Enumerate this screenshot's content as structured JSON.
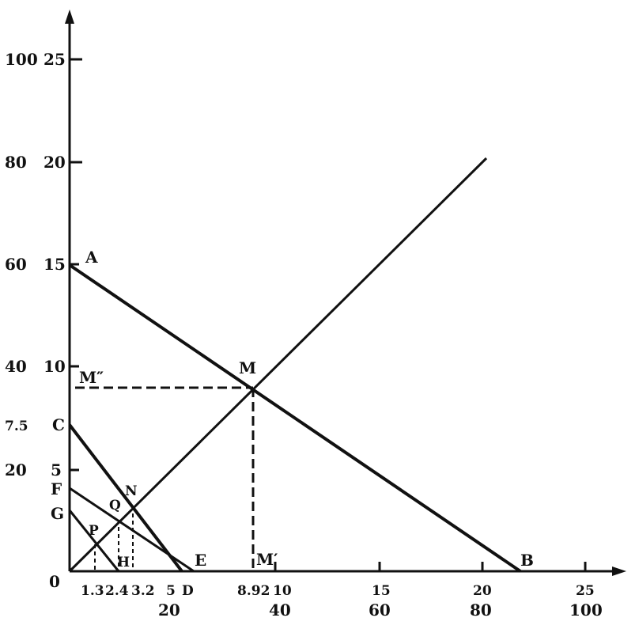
{
  "y_axis": {
    "outer_labels": [
      "100",
      "80",
      "60",
      "40",
      "7.5",
      "20"
    ],
    "inner_labels": [
      "25",
      "20",
      "15",
      "10",
      "5"
    ]
  },
  "x_axis": {
    "upper_labels": [
      "1.3",
      "2.4",
      "3.2",
      "5",
      "8.92",
      "10",
      "15",
      "20",
      "25"
    ],
    "lower_labels": [
      "20",
      "40",
      "60",
      "80",
      "100"
    ]
  },
  "points": {
    "origin": "0",
    "A": "A",
    "B": "B",
    "C": "C",
    "D": "D",
    "E": "E",
    "F": "F",
    "G": "G",
    "H": "H",
    "M": "M",
    "M_prime": "M′",
    "M_double_prime": "M″",
    "N": "N",
    "P": "P",
    "Q": "Q"
  }
}
